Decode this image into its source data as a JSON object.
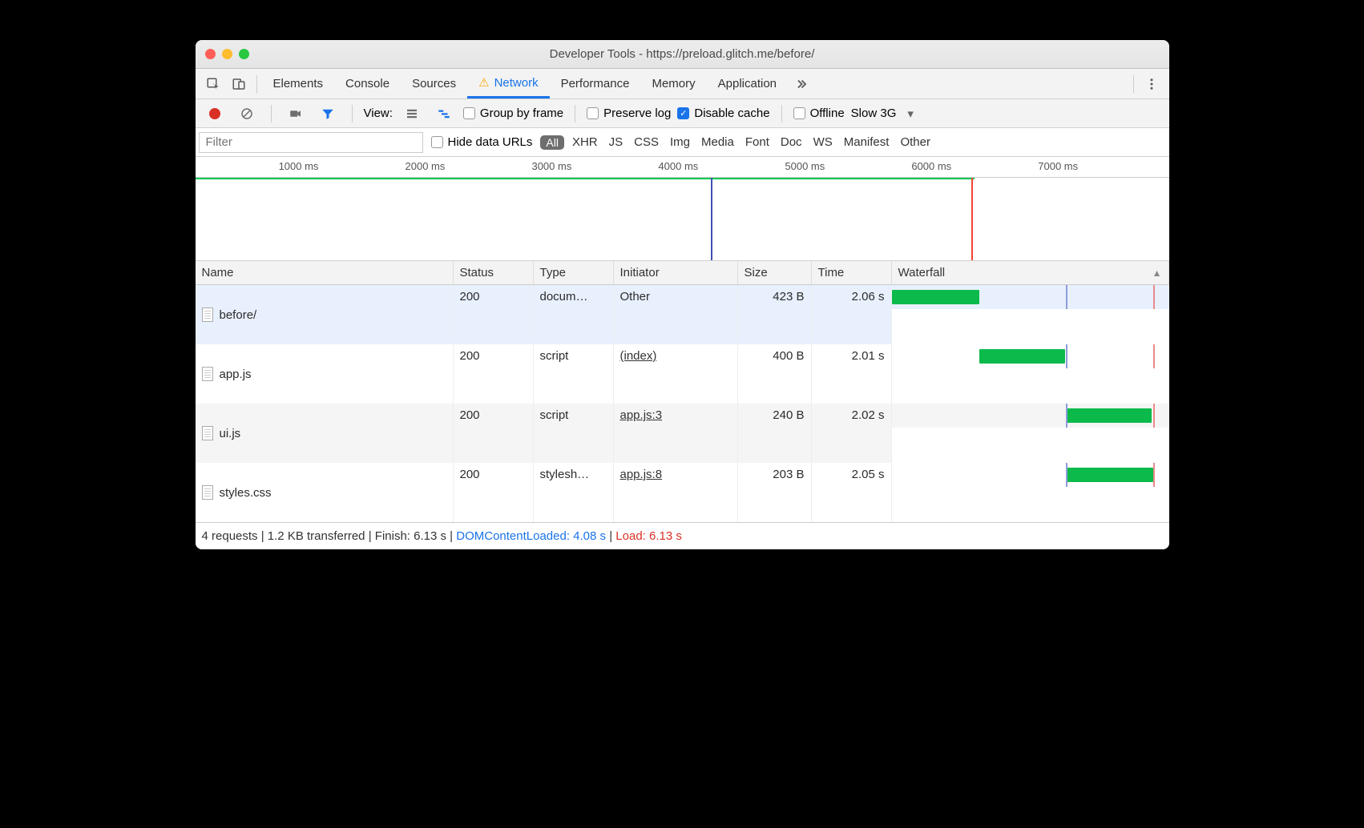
{
  "window": {
    "title": "Developer Tools - https://preload.glitch.me/before/",
    "traffic_colors": [
      "#ff5f57",
      "#febc2e",
      "#28c840"
    ]
  },
  "tabs": {
    "items": [
      "Elements",
      "Console",
      "Sources",
      "Network",
      "Performance",
      "Memory",
      "Application"
    ],
    "active_index": 3,
    "network_has_warning": true
  },
  "toolbar": {
    "view_label": "View:",
    "group_by_frame": "Group by frame",
    "preserve_log": "Preserve log",
    "disable_cache": "Disable cache",
    "disable_cache_checked": true,
    "offline": "Offline",
    "throttle": "Slow 3G"
  },
  "filter": {
    "placeholder": "Filter",
    "hide_data_urls": "Hide data URLs",
    "all_label": "All",
    "types": [
      "XHR",
      "JS",
      "CSS",
      "Img",
      "Media",
      "Font",
      "Doc",
      "WS",
      "Manifest",
      "Other"
    ]
  },
  "overview": {
    "ticks": [
      {
        "label": "1000 ms",
        "pct": 13.0
      },
      {
        "label": "2000 ms",
        "pct": 26.0
      },
      {
        "label": "3000 ms",
        "pct": 39.0
      },
      {
        "label": "4000 ms",
        "pct": 52.0
      },
      {
        "label": "5000 ms",
        "pct": 65.0
      },
      {
        "label": "6000 ms",
        "pct": 78.0
      },
      {
        "label": "7000 ms",
        "pct": 91.0
      }
    ],
    "green_line": {
      "start_pct": 0,
      "end_pct": 80,
      "color": "#00c853"
    },
    "dcl_line_pct": 53.0,
    "load_line_pct": 79.7,
    "dcl_color": "#3f51b5",
    "load_color": "#f44336"
  },
  "table": {
    "columns": [
      "Name",
      "Status",
      "Type",
      "Initiator",
      "Size",
      "Time",
      "Waterfall"
    ],
    "sort_col": 6,
    "waterfall": {
      "total_ms": 6500,
      "dcl_ms": 4080,
      "load_ms": 6130,
      "bar_color": "#0bba4b",
      "dcl_color": "#8e9bd8",
      "load_color": "#e88b8b"
    },
    "rows": [
      {
        "name": "before/",
        "status": "200",
        "type": "docum…",
        "initiator": "Other",
        "initiator_kind": "other",
        "size": "423 B",
        "time": "2.06 s",
        "wf_start_ms": 0,
        "wf_dur_ms": 2060,
        "selected": true
      },
      {
        "name": "app.js",
        "status": "200",
        "type": "script",
        "initiator": "(index)",
        "initiator_kind": "link",
        "size": "400 B",
        "time": "2.01 s",
        "wf_start_ms": 2060,
        "wf_dur_ms": 2010
      },
      {
        "name": "ui.js",
        "status": "200",
        "type": "script",
        "initiator": "app.js:3",
        "initiator_kind": "link",
        "size": "240 B",
        "time": "2.02 s",
        "wf_start_ms": 4080,
        "wf_dur_ms": 2020,
        "alt": true
      },
      {
        "name": "styles.css",
        "status": "200",
        "type": "stylesh…",
        "initiator": "app.js:8",
        "initiator_kind": "link",
        "size": "203 B",
        "time": "2.05 s",
        "wf_start_ms": 4080,
        "wf_dur_ms": 2050
      }
    ]
  },
  "status": {
    "requests": "4 requests",
    "transferred": "1.2 KB transferred",
    "finish": "Finish: 6.13 s",
    "dcl": "DOMContentLoaded: 4.08 s",
    "load": "Load: 6.13 s"
  }
}
